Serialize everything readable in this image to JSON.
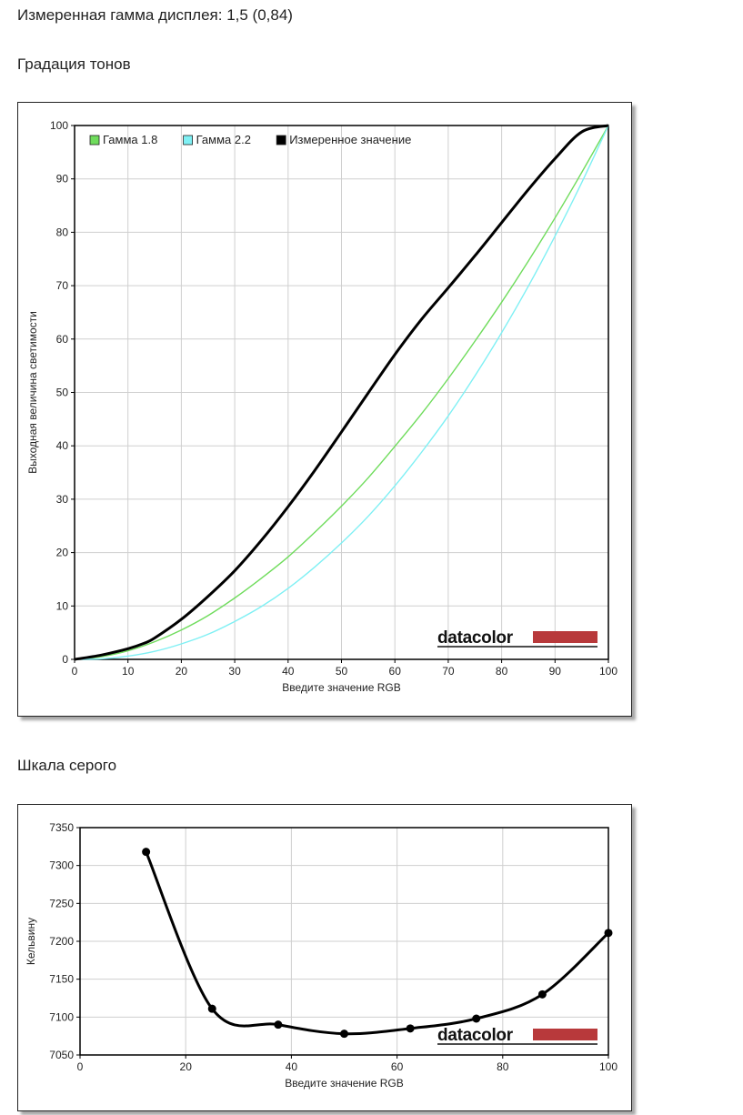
{
  "header": {
    "measured_gamma": "Измеренная гамма дисплея: 1,5 (0,84)",
    "section1_title": "Градация тонов",
    "section2_title": "Шкала серого"
  },
  "watermark": {
    "text": "datacolor",
    "color": "#b8393b"
  },
  "chart_data": [
    {
      "type": "line",
      "xlabel": "Введите значение RGB",
      "ylabel": "Выходная величина светимости",
      "xlim": [
        0,
        100
      ],
      "ylim": [
        0,
        100
      ],
      "xticks": [
        0,
        10,
        20,
        30,
        40,
        50,
        60,
        70,
        80,
        90,
        100
      ],
      "yticks": [
        0,
        10,
        20,
        30,
        40,
        50,
        60,
        70,
        80,
        90,
        100
      ],
      "grid": true,
      "legend_position": "top-left",
      "series": [
        {
          "name": "Гамма 1.8",
          "color": "#6fdc5c",
          "x": [
            0,
            5,
            10,
            15,
            20,
            25,
            30,
            35,
            40,
            45,
            50,
            55,
            60,
            65,
            70,
            75,
            80,
            85,
            90,
            95,
            100
          ],
          "y": [
            0,
            0.5,
            1.6,
            3.3,
            5.5,
            8.2,
            11.5,
            15.2,
            19.2,
            23.8,
            28.7,
            34,
            39.9,
            46,
            52.6,
            59.6,
            66.9,
            74.6,
            82.7,
            91.2,
            100
          ]
        },
        {
          "name": "Гамма 2.2",
          "color": "#7ff0f4",
          "x": [
            0,
            5,
            10,
            15,
            20,
            25,
            30,
            35,
            40,
            45,
            50,
            55,
            60,
            65,
            70,
            75,
            80,
            85,
            90,
            95,
            100
          ],
          "y": [
            0,
            0.1,
            0.6,
            1.5,
            2.9,
            4.7,
            7.1,
            9.9,
            13.3,
            17.3,
            21.8,
            26.8,
            32.5,
            38.8,
            45.6,
            53.1,
            61.2,
            69.9,
            79.3,
            89.3,
            100
          ]
        },
        {
          "name": "Измеренное значение",
          "color": "#000000",
          "x": [
            0,
            5,
            10,
            13,
            15,
            20,
            25,
            30,
            35,
            40,
            45,
            50,
            55,
            60,
            65,
            70,
            75,
            80,
            85,
            90,
            95,
            100
          ],
          "y": [
            0,
            0.8,
            2,
            3,
            4,
            7.5,
            11.8,
            16.6,
            22.3,
            28.6,
            35.4,
            42.6,
            49.9,
            57.1,
            63.7,
            69.6,
            75.6,
            81.8,
            88,
            93.8,
            98.8,
            100
          ]
        }
      ]
    },
    {
      "type": "line",
      "xlabel": "Введите значение RGB",
      "ylabel": "Кельвину",
      "xlim": [
        0,
        100
      ],
      "ylim": [
        7050,
        7350
      ],
      "xticks": [
        0,
        20,
        40,
        60,
        80,
        100
      ],
      "yticks": [
        7050,
        7100,
        7150,
        7200,
        7250,
        7300,
        7350
      ],
      "grid": true,
      "series": [
        {
          "name": "",
          "color": "#000000",
          "markers": true,
          "x": [
            12.5,
            25,
            37.5,
            50,
            62.5,
            75,
            87.5,
            100
          ],
          "y": [
            7318,
            7111,
            7090,
            7078,
            7085,
            7098,
            7130,
            7211
          ]
        }
      ]
    }
  ]
}
